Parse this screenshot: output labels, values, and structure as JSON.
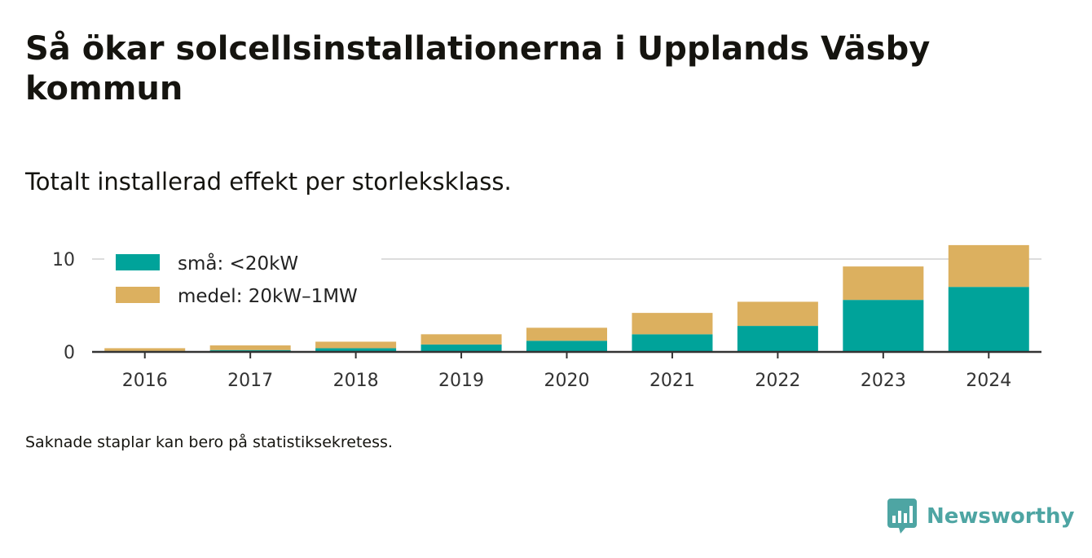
{
  "title": "Så ökar solcellsinstallationerna i Upplands Väsby kommun",
  "subtitle": "Totalt installerad effekt per storleksklass.",
  "footnote": "Saknade staplar kan bero på statistiksekretess.",
  "brand": {
    "name": "Newsworthy",
    "icon": "newsworthy-chart-bubble-icon",
    "color": "#4ea5a3"
  },
  "colors": {
    "small": "#00a39a",
    "medium": "#dcb05f",
    "gridline": "#dddddd",
    "axis": "#333333"
  },
  "chart_data": {
    "type": "bar",
    "stacked": true,
    "title": "",
    "xlabel": "",
    "ylabel": "",
    "categories": [
      "2016",
      "2017",
      "2018",
      "2019",
      "2020",
      "2021",
      "2022",
      "2023",
      "2024"
    ],
    "series": [
      {
        "name": "små: <20kW",
        "color": "#00a39a",
        "values": [
          0.1,
          0.2,
          0.4,
          0.8,
          1.2,
          1.9,
          2.8,
          5.6,
          7.0
        ]
      },
      {
        "name": "medel: 20kW–1MW",
        "color": "#dcb05f",
        "values": [
          0.3,
          0.5,
          0.7,
          1.1,
          1.4,
          2.3,
          2.6,
          3.6,
          4.5
        ]
      }
    ],
    "yticks": [
      0,
      10
    ],
    "ylim": [
      0,
      12
    ],
    "grid": true,
    "legend": "top-left"
  }
}
